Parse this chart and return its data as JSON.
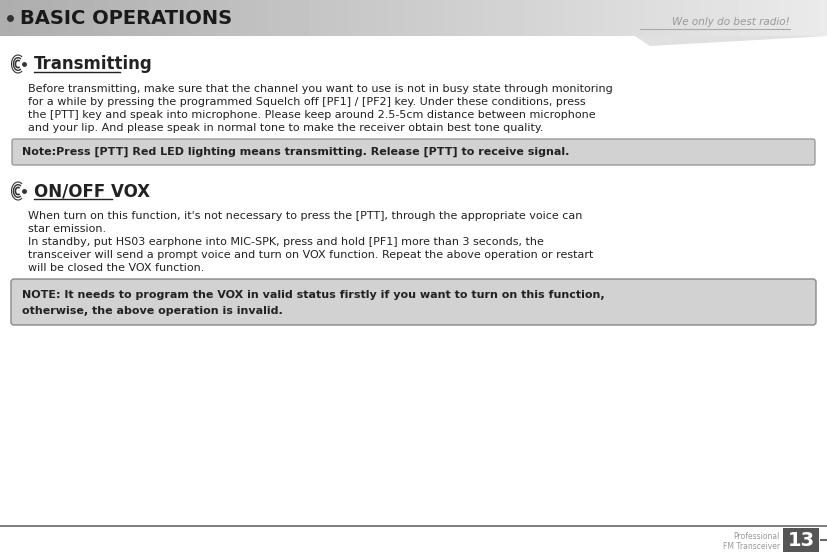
{
  "page_bg": "#ffffff",
  "header_title": "BASIC OPERATIONS",
  "header_title_color": "#1a1a1a",
  "header_title_size": 14,
  "watermark_text": "We only do best radio!",
  "watermark_color": "#999999",
  "section1_title": "Transmitting",
  "section1_title_size": 12,
  "section1_body_lines": [
    "Before transmitting, make sure that the channel you want to use is not in busy state through monitoring",
    "for a while by pressing the programmed Squelch off [PF1] / [PF2] key. Under these conditions, press",
    "the [PTT] key and speak into microphone. Please keep around 2.5-5cm distance between microphone",
    "and your lip. And please speak in normal tone to make the receiver obtain best tone quality."
  ],
  "note1_bg": "#d2d2d2",
  "note1_border": "#888888",
  "note1_text": "Note:Press [PTT] Red LED lighting means transmitting. Release [PTT] to receive signal.",
  "section2_title": "ON/OFF VOX",
  "section2_title_size": 12,
  "section2_body1_lines": [
    "When turn on this function, it's not necessary to press the [PTT], through the appropriate voice can",
    "star emission."
  ],
  "section2_body2_lines": [
    "In standby, put HS03 earphone into MIC-SPK, press and hold [PF1] more than 3 seconds, the",
    "transceiver will send a prompt voice and turn on VOX function. Repeat the above operation or restart",
    "will be closed the VOX function."
  ],
  "note2_bg": "#d2d2d2",
  "note2_border": "#888888",
  "note2_lines": [
    "NOTE: It needs to program the VOX in valid status firstly if you want to turn on this function,",
    "otherwise, the above operation is invalid."
  ],
  "footer_label1": "Professional",
  "footer_label2": "FM Transceiver",
  "footer_num": "13",
  "footer_num_bg": "#555555",
  "footer_num_color": "#ffffff",
  "body_font_size": 8.0,
  "body_color": "#222222",
  "icon_color": "#333333"
}
